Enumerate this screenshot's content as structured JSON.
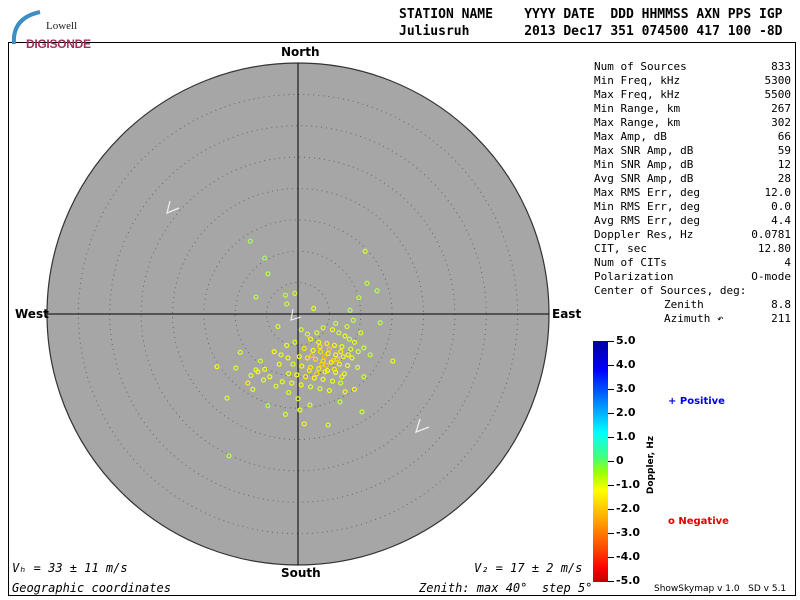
{
  "logo": {
    "line1": "Lowell",
    "line2": "DIGISONDE"
  },
  "header": {
    "col_headers": "STATION NAME    YYYY DATE  DDD HHMMSS AXN PPS IGP",
    "values": "Juliusruh       2013 Dec17 351 074500 417 100 -8D"
  },
  "stats": [
    {
      "label": "Num of Sources",
      "value": "833"
    },
    {
      "label": "Min Freq, kHz",
      "value": "5300"
    },
    {
      "label": "Max Freq, kHz",
      "value": "5500"
    },
    {
      "label": "Min Range, km",
      "value": "267"
    },
    {
      "label": "Max Range, km",
      "value": "302"
    },
    {
      "label": "Max Amp, dB",
      "value": "66"
    },
    {
      "label": "Max SNR Amp, dB",
      "value": "59"
    },
    {
      "label": "Min SNR Amp, dB",
      "value": "12"
    },
    {
      "label": "Avg SNR Amp, dB",
      "value": "28"
    },
    {
      "label": "Max RMS Err, deg",
      "value": "12.0"
    },
    {
      "label": "Min RMS Err, deg",
      "value": "0.0"
    },
    {
      "label": "Avg RMS Err, deg",
      "value": "4.4"
    },
    {
      "label": "Doppler Res, Hz",
      "value": "0.0781"
    },
    {
      "label": "CIT, sec",
      "value": "12.80"
    },
    {
      "label": "Num of CITs",
      "value": "4"
    },
    {
      "label": "Polarization",
      "value": "O-mode"
    }
  ],
  "center": {
    "title": "Center of Sources, deg:",
    "zenith_label": "Zenith",
    "zenith": "8.8",
    "azimuth_label": "Azimuth ↶",
    "azimuth": "211"
  },
  "directions": {
    "north": "North",
    "south": "South",
    "east": "East",
    "west": "West"
  },
  "velocity": {
    "vh": "Vₕ = 33 ± 11 m/s",
    "vz": "V₂ = 17 ± 2 m/s"
  },
  "bottom": {
    "coords": "Geographic coordinates",
    "zenith": "Zenith: max 40°  step 5°"
  },
  "legend": {
    "positive": "Positive",
    "negative": "Negative",
    "positive_color": "#0000e0",
    "negative_color": "#e00000"
  },
  "colorbar": {
    "label": "Doppler, Hz",
    "ticks": [
      "5.0",
      "4.0",
      "3.0",
      "2.0",
      "1.0",
      "0",
      "-1.0",
      "-2.0",
      "-3.0",
      "-4.0",
      "-5.0"
    ]
  },
  "footer": "ShowSkymap v 1.0   SD v 5.1",
  "chart_data": {
    "type": "scatter",
    "projection": "polar-skymap",
    "zenith_max_deg": 40,
    "ring_step_deg": 5,
    "colorscale": "jet",
    "clim": [
      -5,
      5
    ],
    "background": "#a6a6a6",
    "point_format": [
      "east_deg",
      "north_deg",
      "doppler_hz"
    ],
    "points": [
      [
        -7.6,
        11.6,
        -0.4
      ],
      [
        -5.3,
        8.9,
        -0.3
      ],
      [
        -4.8,
        6.4,
        -0.5
      ],
      [
        -6.7,
        2.7,
        -0.6
      ],
      [
        10.7,
        10.0,
        -0.8
      ],
      [
        11.0,
        4.9,
        -0.6
      ],
      [
        12.6,
        3.7,
        -0.5
      ],
      [
        -12.9,
        -8.4,
        -1.2
      ],
      [
        -11.3,
        -13.4,
        -1.0
      ],
      [
        -11.0,
        -22.6,
        -0.6
      ],
      [
        -9.2,
        -6.1,
        -0.8
      ],
      [
        15.1,
        -7.5,
        -1.1
      ],
      [
        4.8,
        -17.7,
        -1.0
      ],
      [
        -1.8,
        1.6,
        -0.7
      ],
      [
        8.3,
        0.6,
        -0.5
      ],
      [
        13.1,
        -1.4,
        -0.6
      ],
      [
        -5.3,
        -8.8,
        -1.1
      ],
      [
        -9.9,
        -8.6,
        -0.9
      ],
      [
        -6.4,
        -9.2,
        -1.3
      ],
      [
        0.3,
        -15.3,
        -1.0
      ],
      [
        1.9,
        -14.5,
        -0.8
      ],
      [
        10.2,
        -15.6,
        -0.7
      ],
      [
        7.5,
        -12.4,
        -1.2
      ],
      [
        -4.8,
        -14.6,
        -0.5
      ],
      [
        -6.7,
        -8.9,
        -0.9
      ],
      [
        4.3,
        -9.2,
        -1.4
      ],
      [
        -2.0,
        3.0,
        -0.6
      ],
      [
        -0.5,
        3.3,
        -0.8
      ],
      [
        2.5,
        0.9,
        -1.0
      ],
      [
        9.7,
        2.6,
        -0.6
      ],
      [
        10.5,
        -5.4,
        -0.7
      ],
      [
        -3.2,
        -2.0,
        -0.9
      ],
      [
        -3.0,
        -8.0,
        -1.2
      ],
      [
        -8.0,
        -11.0,
        -1.4
      ],
      [
        -7.2,
        -12.0,
        -1.0
      ],
      [
        -1.5,
        -12.5,
        -0.9
      ],
      [
        -2.0,
        -16.0,
        -0.8
      ],
      [
        1.0,
        -17.5,
        -1.1
      ],
      [
        6.7,
        -14.0,
        -0.6
      ],
      [
        9.0,
        -12.0,
        -1.3
      ],
      [
        3.0,
        -3.0,
        -1.0
      ],
      [
        4.0,
        -2.2,
        -0.9
      ],
      [
        5.5,
        -2.5,
        -1.2
      ],
      [
        6.5,
        -3.0,
        -0.8
      ],
      [
        7.5,
        -3.5,
        -1.1
      ],
      [
        8.2,
        -4.0,
        -0.7
      ],
      [
        9.0,
        -4.5,
        -1.0
      ],
      [
        2.0,
        -4.0,
        -1.3
      ],
      [
        3.3,
        -4.5,
        -1.1
      ],
      [
        4.6,
        -4.7,
        -1.4
      ],
      [
        5.8,
        -5.0,
        -1.2
      ],
      [
        7.0,
        -5.2,
        -1.0
      ],
      [
        8.4,
        -5.6,
        -0.9
      ],
      [
        9.6,
        -6.0,
        -0.8
      ],
      [
        1.0,
        -5.5,
        -1.5
      ],
      [
        2.4,
        -5.8,
        -1.3
      ],
      [
        3.6,
        -6.0,
        -1.6
      ],
      [
        4.8,
        -6.3,
        -1.4
      ],
      [
        6.0,
        -6.5,
        -1.2
      ],
      [
        7.2,
        -6.8,
        -1.1
      ],
      [
        8.6,
        -7.0,
        -1.0
      ],
      [
        0.2,
        -6.8,
        -1.2
      ],
      [
        1.5,
        -7.0,
        -1.4
      ],
      [
        2.8,
        -7.2,
        -1.6
      ],
      [
        4.0,
        -7.5,
        -1.5
      ],
      [
        5.3,
        -7.7,
        -1.3
      ],
      [
        6.6,
        -8.0,
        -1.2
      ],
      [
        7.9,
        -8.2,
        -1.1
      ],
      [
        -0.8,
        -8.0,
        -1.0
      ],
      [
        0.6,
        -8.3,
        -1.3
      ],
      [
        2.0,
        -8.5,
        -1.5
      ],
      [
        3.3,
        -8.7,
        -1.4
      ],
      [
        4.7,
        -9.0,
        -1.2
      ],
      [
        6.0,
        -9.3,
        -1.1
      ],
      [
        7.4,
        -9.5,
        -0.9
      ],
      [
        -1.5,
        -9.5,
        -1.1
      ],
      [
        -0.2,
        -9.7,
        -1.2
      ],
      [
        1.2,
        -10.0,
        -1.4
      ],
      [
        2.6,
        -10.2,
        -1.3
      ],
      [
        4.0,
        -10.4,
        -1.1
      ],
      [
        5.5,
        -10.7,
        -1.0
      ],
      [
        6.8,
        -11.0,
        -0.8
      ],
      [
        -2.5,
        -10.8,
        -1.0
      ],
      [
        -1.0,
        -11.0,
        -1.1
      ],
      [
        0.5,
        -11.3,
        -1.2
      ],
      [
        2.0,
        -11.6,
        -1.0
      ],
      [
        3.5,
        -11.9,
        -0.9
      ],
      [
        5.0,
        -12.2,
        -1.1
      ],
      [
        -3.8,
        -6.0,
        -1.2
      ],
      [
        -2.7,
        -6.5,
        -1.0
      ],
      [
        -1.6,
        -7.0,
        -1.3
      ],
      [
        -4.5,
        -10.0,
        -1.1
      ],
      [
        -3.5,
        -11.5,
        -0.9
      ],
      [
        -5.5,
        -10.5,
        -1.0
      ],
      [
        0.5,
        -2.5,
        -0.8
      ],
      [
        1.5,
        -3.2,
        -0.9
      ],
      [
        6.0,
        -1.5,
        -0.7
      ],
      [
        7.8,
        -2.0,
        -0.8
      ],
      [
        8.8,
        -1.0,
        -0.6
      ],
      [
        10.0,
        -3.0,
        -0.9
      ],
      [
        11.5,
        -6.5,
        -0.7
      ],
      [
        3.5,
        -5.2,
        -1.5
      ],
      [
        5.0,
        -5.6,
        -1.7
      ],
      [
        6.3,
        -7.2,
        -1.6
      ],
      [
        4.5,
        -8.2,
        -1.8
      ],
      [
        3.0,
        -9.5,
        -1.6
      ],
      [
        5.8,
        -8.8,
        -1.5
      ],
      [
        7.0,
        -10.0,
        -1.4
      ],
      [
        2.2,
        -6.6,
        -1.7
      ],
      [
        4.2,
        -6.8,
        -1.9
      ],
      [
        5.6,
        -7.4,
        -1.6
      ],
      [
        3.8,
        -8.0,
        -1.7
      ],
      [
        1.8,
        -9.0,
        -1.5
      ],
      [
        6.8,
        -6.0,
        -1.4
      ],
      [
        8.0,
        -6.5,
        -1.2
      ],
      [
        -0.5,
        -4.5,
        -0.9
      ],
      [
        -1.8,
        -5.0,
        -1.0
      ],
      [
        9.5,
        -8.5,
        -0.9
      ],
      [
        10.5,
        -10.0,
        -0.8
      ],
      [
        -6.0,
        -7.5,
        -0.8
      ],
      [
        -7.5,
        -9.8,
        -1.0
      ],
      [
        0.0,
        -13.5,
        -0.9
      ]
    ]
  }
}
